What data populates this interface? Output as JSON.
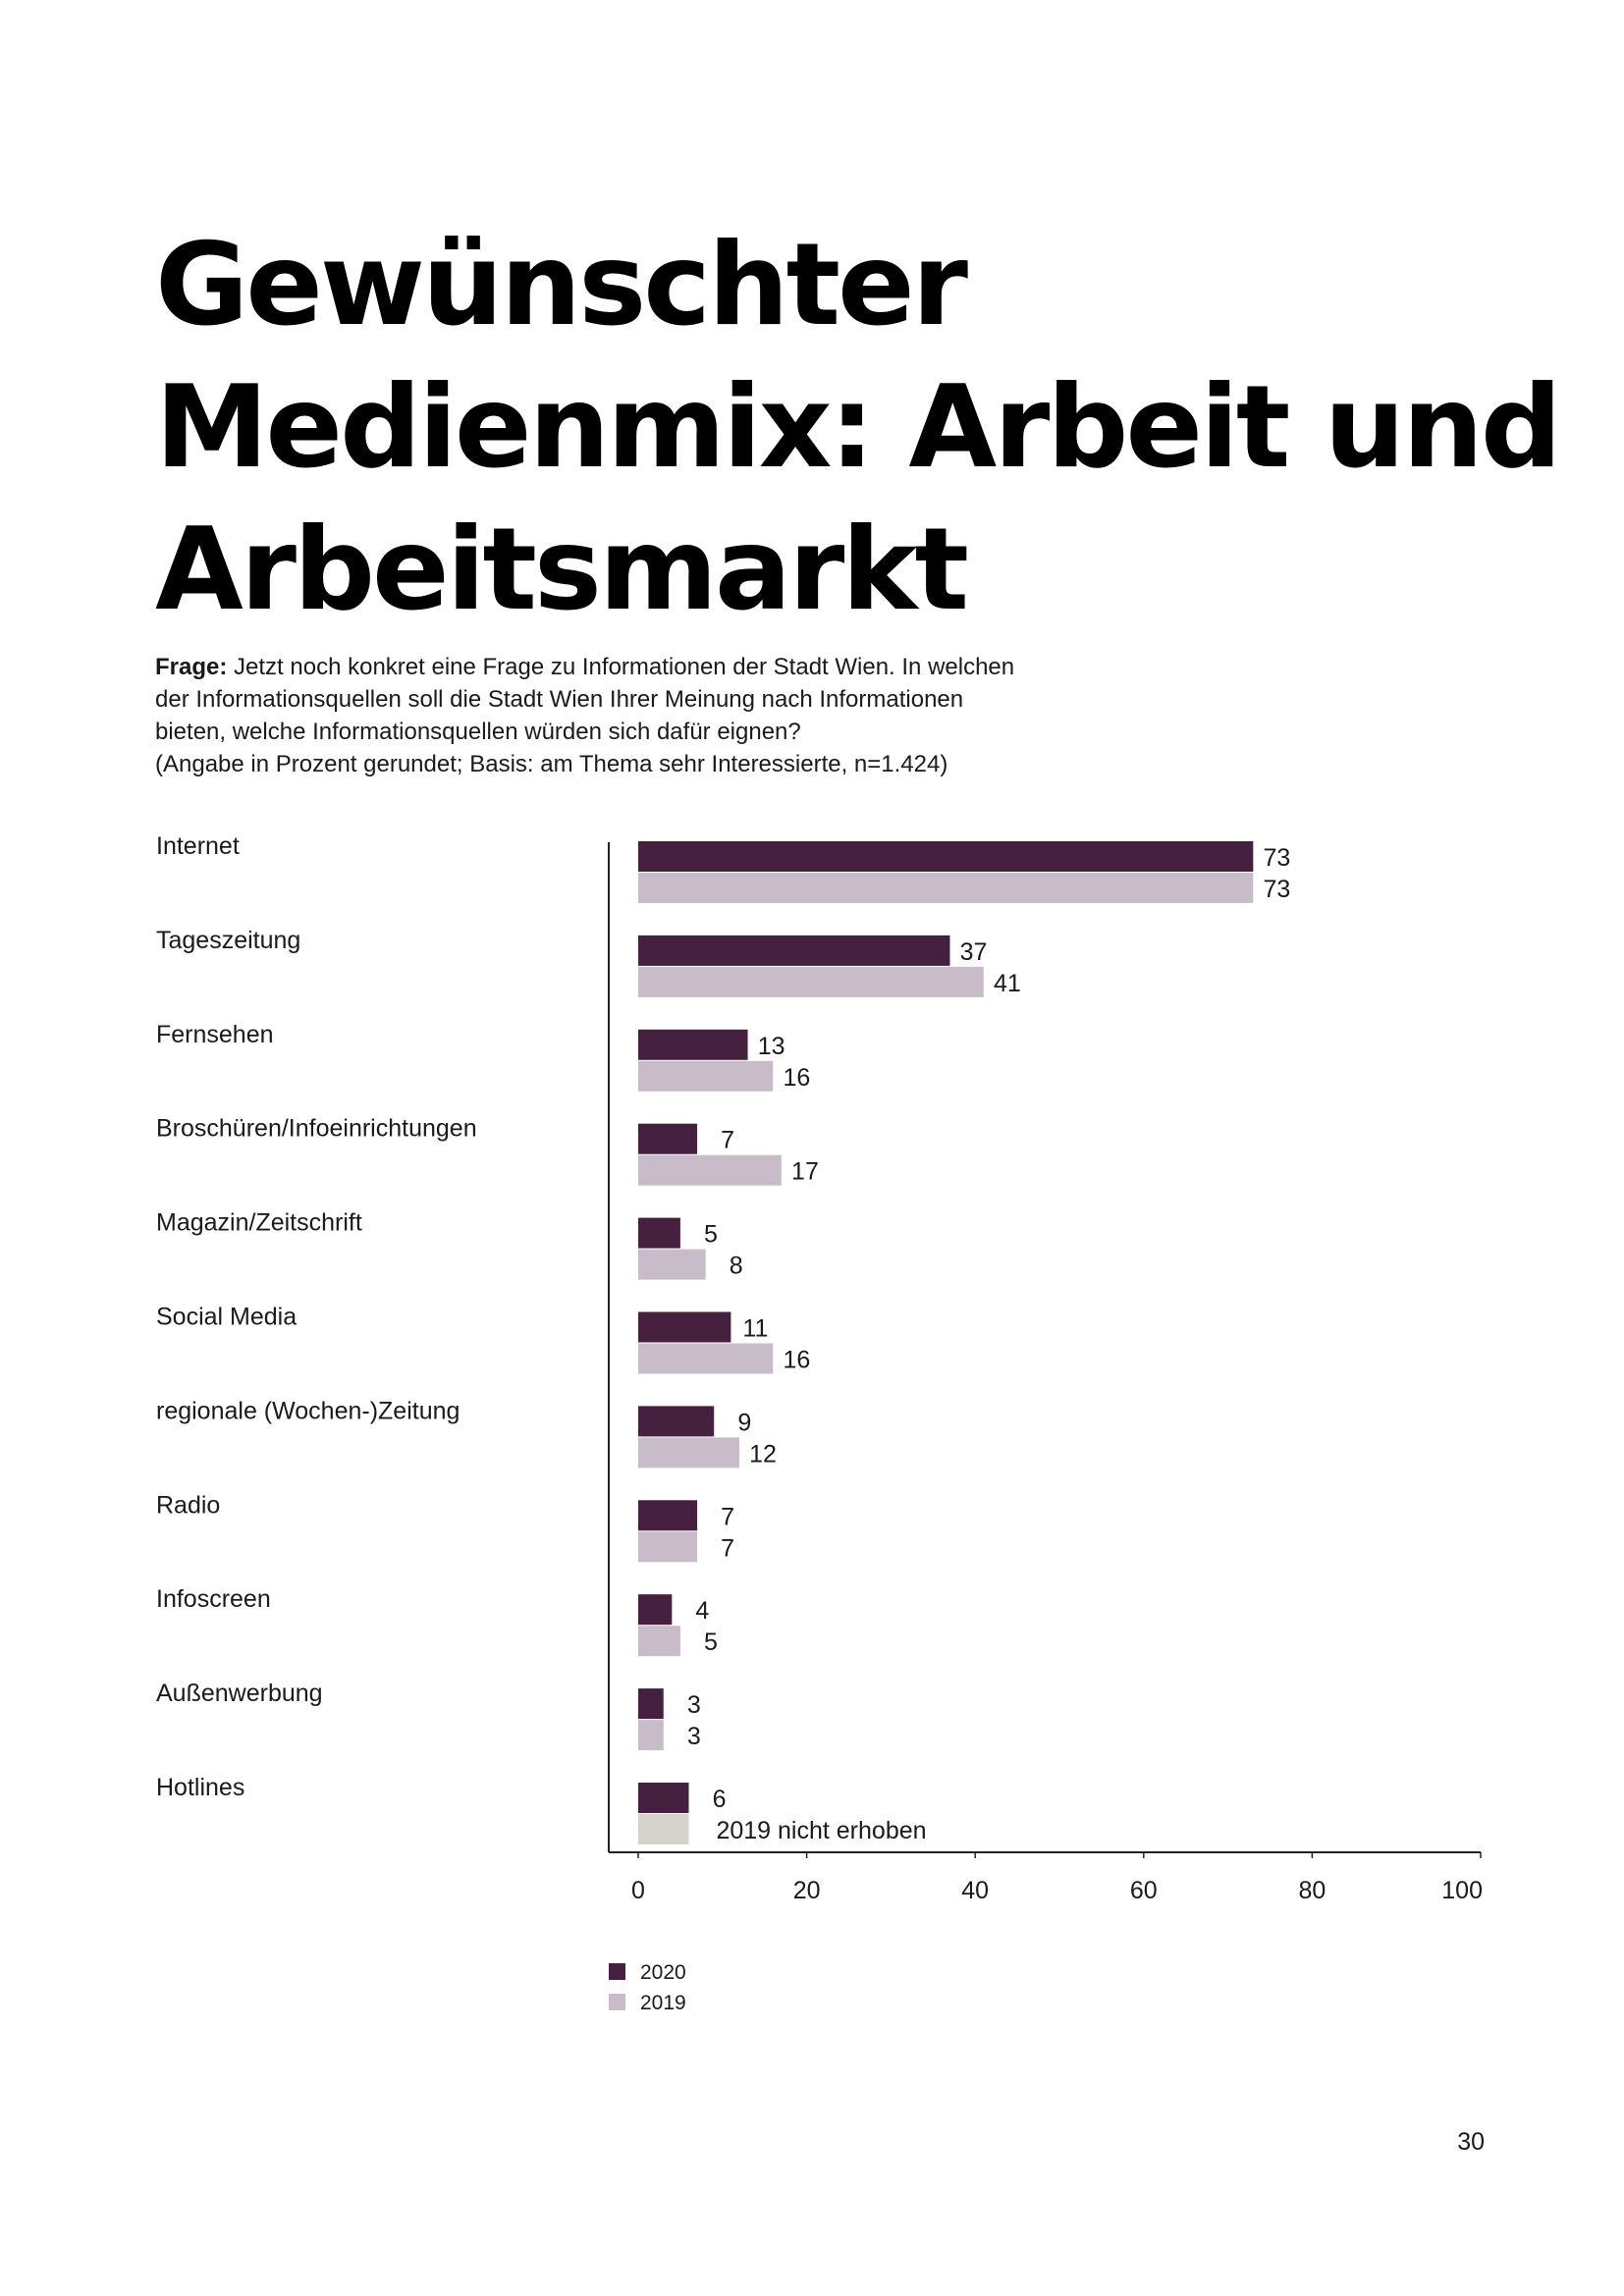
{
  "title_lines": [
    "Gewünschter",
    "Medienmix: Arbeit und",
    "Arbeitsmarkt"
  ],
  "question": {
    "label": "Frage:",
    "lines": [
      "Jetzt noch konkret eine Frage zu Informationen der Stadt Wien. In welchen",
      "der Informationsquellen soll die Stadt Wien Ihrer Meinung nach Informationen",
      "bieten, welche Informationsquellen würden sich dafür eignen?",
      "(Angabe in Prozent gerundet; Basis: am Thema sehr Interessierte, n=1.424)"
    ]
  },
  "chart_data": {
    "type": "bar",
    "orientation": "horizontal",
    "categories": [
      "Internet",
      "Tageszeitung",
      "Fernsehen",
      "Broschüren/Infoeinrichtungen",
      "Magazin/Zeitschrift",
      "Social Media",
      "regionale (Wochen-)Zeitung",
      "Radio",
      "Infoscreen",
      "Außenwerbung",
      "Hotlines"
    ],
    "series": [
      {
        "name": "2020",
        "color": "#45203f",
        "values": [
          73,
          37,
          13,
          7,
          5,
          11,
          9,
          7,
          4,
          3,
          6
        ]
      },
      {
        "name": "2019",
        "color": "#c8bcc8",
        "values": [
          73,
          41,
          16,
          17,
          8,
          16,
          12,
          7,
          5,
          3,
          null
        ]
      }
    ],
    "missing_value_note": "2019 nicht erhoben",
    "missing_value_color": "#d6d3cd",
    "missing_value_bar": 6,
    "xlim": [
      0,
      100
    ],
    "xticks": [
      0,
      20,
      40,
      60,
      80,
      100
    ],
    "legend_position": "bottom-left"
  },
  "page_number": "30"
}
